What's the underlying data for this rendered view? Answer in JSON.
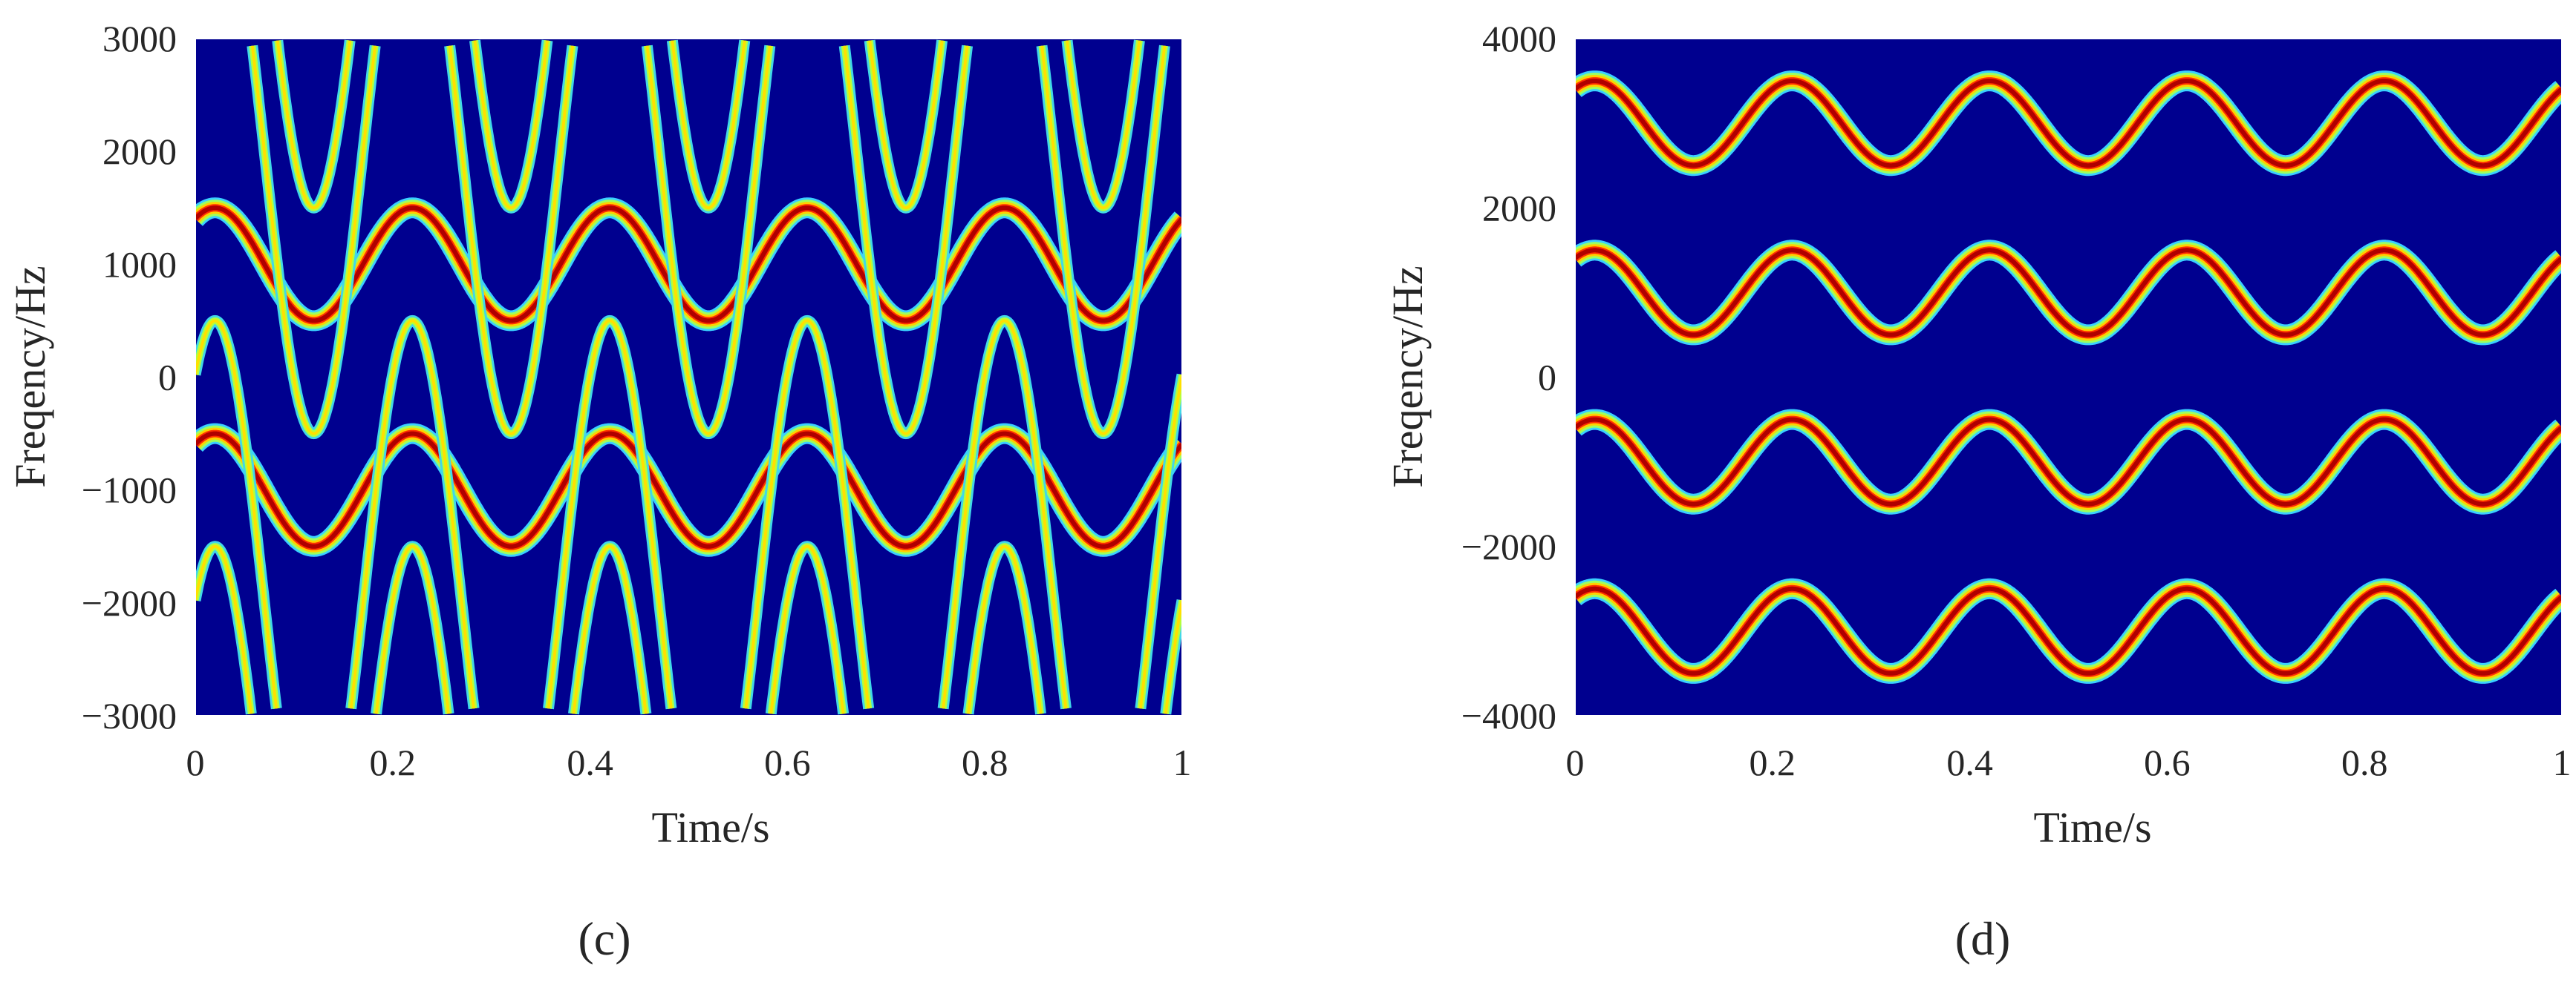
{
  "chart_data": [
    {
      "type": "heatmap",
      "panel_label": "(c)",
      "xlabel": "Time/s",
      "ylabel": "Freqency/Hz",
      "xlim": [
        0,
        1
      ],
      "ylim": [
        -3000,
        3000
      ],
      "xticks": [
        0,
        0.2,
        0.4,
        0.6,
        0.8,
        1
      ],
      "xtick_labels": [
        "0",
        "0.2",
        "0.4",
        "0.6",
        "0.8",
        "1"
      ],
      "yticks": [
        3000,
        2000,
        1000,
        0,
        -1000,
        -2000,
        -3000
      ],
      "ytick_labels": [
        "3000",
        "2000",
        "1000",
        "0",
        "−1000",
        "−2000",
        "−3000"
      ],
      "background_color": "#00008f",
      "ridge_color": "#b00000",
      "grid": false,
      "series": [
        {
          "center_hz": 1000,
          "amplitude_hz": 500,
          "period_s": 0.2,
          "first_peak_s": 0.02,
          "fs_hz": 6000
        },
        {
          "center_hz": -1000,
          "amplitude_hz": 500,
          "period_s": 0.2,
          "first_peak_s": 0.02,
          "fs_hz": 6000
        },
        {
          "center_hz": 2000,
          "amplitude_hz": 2500,
          "period_s": 0.2,
          "first_peak_s": 0.02,
          "fs_hz": 6000,
          "thin": true
        },
        {
          "center_hz": -2000,
          "amplitude_hz": 2500,
          "period_s": 0.2,
          "first_peak_s": 0.02,
          "fs_hz": 6000,
          "thin": true
        }
      ]
    },
    {
      "type": "heatmap",
      "panel_label": "(d)",
      "xlabel": "Time/s",
      "ylabel": "Freqency/Hz",
      "xlim": [
        0,
        1
      ],
      "ylim": [
        -4000,
        4000
      ],
      "xticks": [
        0,
        0.2,
        0.4,
        0.6,
        0.8,
        1
      ],
      "xtick_labels": [
        "0",
        "0.2",
        "0.4",
        "0.6",
        "0.8",
        "1"
      ],
      "yticks": [
        4000,
        2000,
        0,
        -2000,
        -4000
      ],
      "ytick_labels": [
        "4000",
        "2000",
        "0",
        "−2000",
        "−4000"
      ],
      "background_color": "#00008f",
      "ridge_color": "#b00000",
      "grid": false,
      "series": [
        {
          "center_hz": 3000,
          "amplitude_hz": 500,
          "period_s": 0.2,
          "first_peak_s": 0.02,
          "fs_hz": 8000
        },
        {
          "center_hz": 1000,
          "amplitude_hz": 500,
          "period_s": 0.2,
          "first_peak_s": 0.02,
          "fs_hz": 8000
        },
        {
          "center_hz": -1000,
          "amplitude_hz": 500,
          "period_s": 0.2,
          "first_peak_s": 0.02,
          "fs_hz": 8000
        },
        {
          "center_hz": -3000,
          "amplitude_hz": 500,
          "period_s": 0.2,
          "first_peak_s": 0.02,
          "fs_hz": 8000
        }
      ]
    }
  ]
}
